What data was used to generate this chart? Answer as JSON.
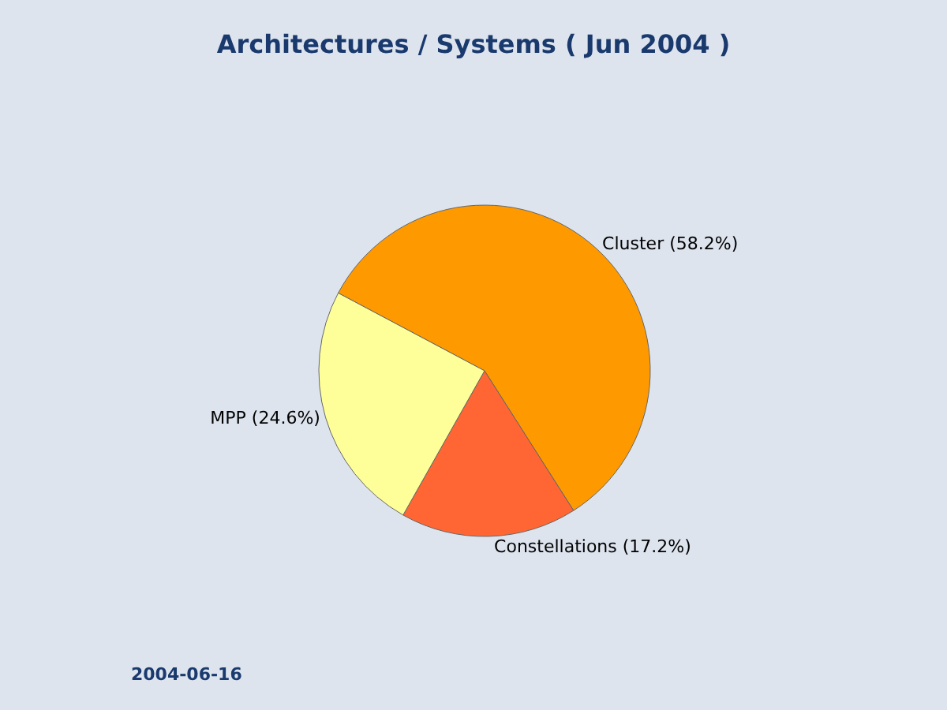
{
  "chart_data": {
    "type": "pie",
    "title": "Architectures / Systems ( Jun 2004 )",
    "categories": [
      "Cluster (58.2%)",
      "Constellations (17.2%)",
      "MPP (24.6%)"
    ],
    "values": [
      58.2,
      17.2,
      24.6
    ],
    "colors": [
      "#ff9900",
      "#ff6633",
      "#ffff99"
    ],
    "annotations": [
      "2004-06-16"
    ],
    "legend": false
  }
}
